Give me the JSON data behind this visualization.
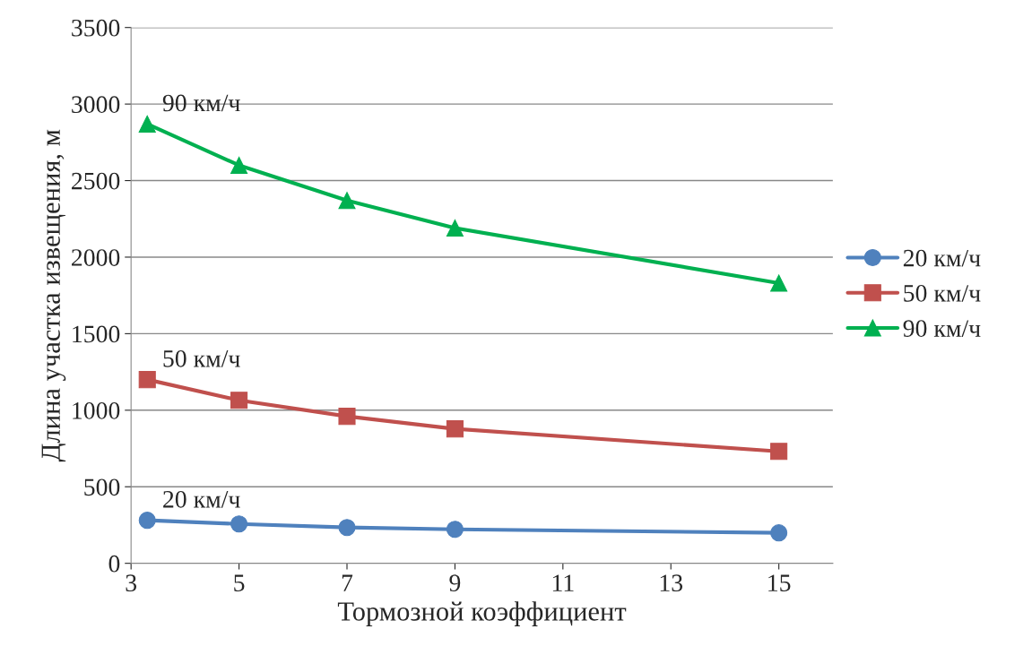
{
  "chart_data": {
    "type": "line",
    "xlabel": "Тормозной коэффициент",
    "ylabel": "Длина участка извещения, м",
    "x": [
      3.3,
      5,
      7,
      9,
      15
    ],
    "series": [
      {
        "name": "20 км/ч",
        "color": "#4f81bd",
        "marker": "circle",
        "values": [
          281,
          257,
          234,
          222,
          199
        ]
      },
      {
        "name": "50 км/ч",
        "color": "#c0504d",
        "marker": "square",
        "values": [
          1200,
          1065,
          960,
          878,
          731
        ]
      },
      {
        "name": "90 км/ч",
        "color": "#00b050",
        "marker": "triangle",
        "values": [
          2870,
          2600,
          2370,
          2190,
          1830
        ]
      }
    ],
    "xlim": [
      3,
      16
    ],
    "xticks": [
      3,
      5,
      7,
      9,
      11,
      13,
      15
    ],
    "ylim": [
      0,
      3500
    ],
    "yticks": [
      0,
      500,
      1000,
      1500,
      2000,
      2500,
      3000,
      3500
    ],
    "grid": "y",
    "legend": "right",
    "line_style": "solid",
    "annotations": [
      "20 км/ч",
      "50 км/ч",
      "90 км/ч"
    ]
  }
}
